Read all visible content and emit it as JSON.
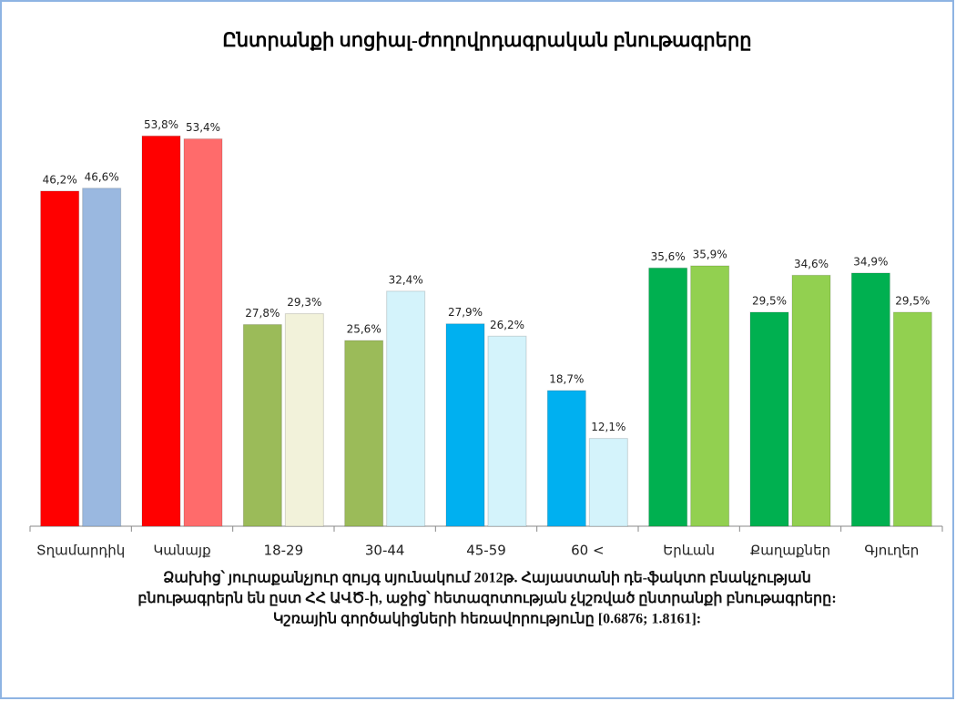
{
  "chart_data": {
    "type": "bar",
    "title": "Ընտրանքի սոցիալ-ժողովրդագրական բնութագրերը",
    "categories": [
      "Տղամարդիկ",
      "Կանայք",
      "18-29",
      "30-44",
      "45-59",
      "60 <",
      "Երևան",
      "Քաղաքներ",
      "Գյուղեր"
    ],
    "series": [
      {
        "values": [
          46.2,
          53.8,
          27.8,
          25.6,
          27.9,
          18.7,
          35.6,
          29.5,
          34.9
        ],
        "value_labels": [
          "46,2%",
          "53,8%",
          "27,8%",
          "25,6%",
          "27,9%",
          "18,7%",
          "35,6%",
          "29,5%",
          "34,9%"
        ],
        "colors": [
          "#ff0000",
          "#ff0000",
          "#9bbb59",
          "#9bbb59",
          "#00b0f0",
          "#00b0f0",
          "#00b050",
          "#00b050",
          "#00b050"
        ]
      },
      {
        "values": [
          46.6,
          53.4,
          29.3,
          32.4,
          26.2,
          12.1,
          35.9,
          34.6,
          29.5
        ],
        "value_labels": [
          "46,6%",
          "53,4%",
          "29,3%",
          "32,4%",
          "26,2%",
          "12,1%",
          "35,9%",
          "34,6%",
          "29,5%"
        ],
        "colors": [
          "#9ab8e0",
          "#ff6b6b",
          "#f2f2da",
          "#d4f3fb",
          "#d4f3fb",
          "#d4f3fb",
          "#92d050",
          "#92d050",
          "#92d050"
        ]
      }
    ],
    "ylim": [
      0,
      60
    ],
    "caption": [
      "Ձախից՝ յուրաքանչյուր զույգ սյունակում 2012թ. Հայաստանի դե-ֆակտո բնակչության",
      "բնութագրերն են ըստ ՀՀ ԱՎԾ-ի, աջից՝ հետազոտության չկշռված ընտրանքի բնութագրերը:",
      "Կշռային գործակիցների հեռավորությունը [0.6876; 1.8161]:"
    ]
  }
}
